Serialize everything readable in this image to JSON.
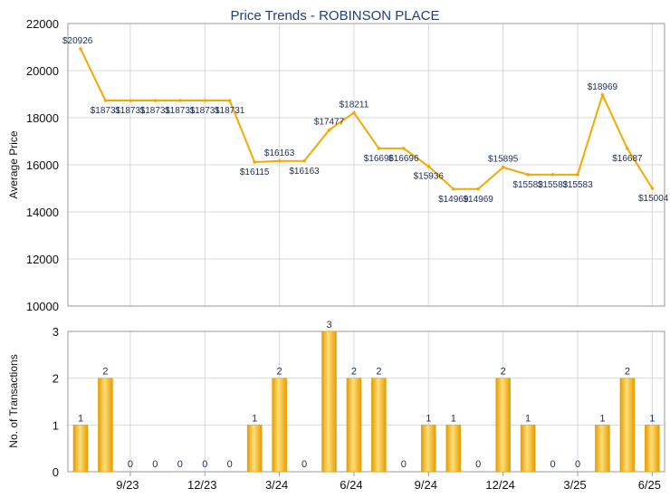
{
  "chart_data": [
    {
      "type": "line",
      "title": "Price Trends - ROBINSON PLACE",
      "ylabel": "Average Price",
      "ylim": [
        10000,
        22000
      ],
      "yticks": [
        "10000",
        "12000",
        "14000",
        "16000",
        "18000",
        "20000",
        "22000"
      ],
      "grid": true,
      "color": "#f5a800",
      "values": [
        20926,
        18731,
        18731,
        18731,
        18731,
        18731,
        18731,
        16115,
        16163,
        16163,
        17477,
        18211,
        16696,
        16696,
        15936,
        14969,
        14969,
        15895,
        15583,
        15583,
        15583,
        18969,
        16687,
        15004
      ],
      "labels": [
        "$20926",
        "$18731",
        "$18731",
        "$18731",
        "$18731",
        "$18731",
        "$18731",
        "$16115",
        "$16163",
        "$16163",
        "$17477",
        "$18211",
        "$16696",
        "$16696",
        "$15936",
        "$14969",
        "$14969",
        "$15895",
        "$15583",
        "$15583",
        "$15583",
        "$18969",
        "$16687",
        "$15004"
      ]
    },
    {
      "type": "bar",
      "ylabel": "No. of Transactions",
      "ylim": [
        0,
        3
      ],
      "yticks": [
        "0",
        "1",
        "2",
        "3"
      ],
      "grid": true,
      "color": "#f5a800",
      "values": [
        1,
        2,
        0,
        0,
        0,
        0,
        0,
        1,
        2,
        0,
        3,
        2,
        2,
        0,
        1,
        1,
        0,
        2,
        1,
        0,
        0,
        1,
        2,
        1
      ],
      "labels": [
        "1",
        "2",
        "0",
        "0",
        "0",
        "0",
        "0",
        "1",
        "2",
        "0",
        "3",
        "2",
        "2",
        "0",
        "1",
        "1",
        "0",
        "2",
        "1",
        "0",
        "0",
        "1",
        "2",
        "1"
      ],
      "xticks": [
        {
          "index": 2,
          "label": "9/23"
        },
        {
          "index": 5,
          "label": "12/23"
        },
        {
          "index": 8,
          "label": "3/24"
        },
        {
          "index": 11,
          "label": "6/24"
        },
        {
          "index": 14,
          "label": "9/24"
        },
        {
          "index": 17,
          "label": "12/24"
        },
        {
          "index": 20,
          "label": "3/25"
        },
        {
          "index": 23,
          "label": "6/25"
        }
      ]
    }
  ]
}
